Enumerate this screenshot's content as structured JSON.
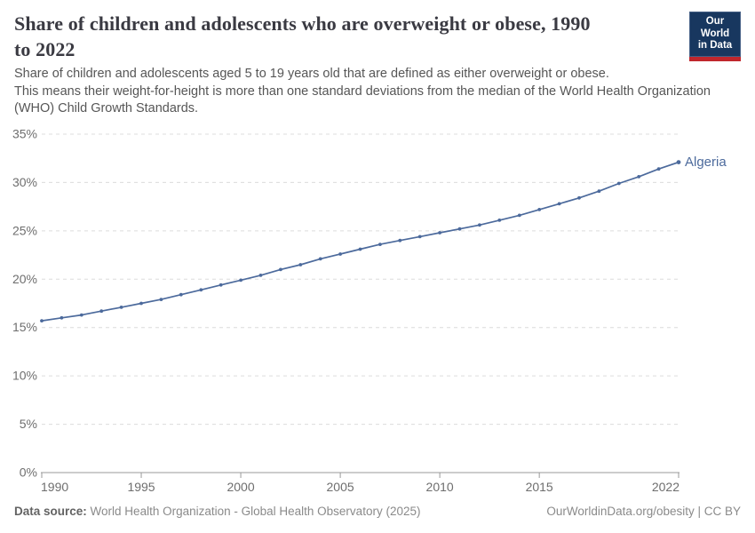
{
  "header": {
    "title_lines": [
      "Share of children and adolescents who are overweight or obese, 1990",
      "to 2022"
    ],
    "logo": {
      "line1": "Our World",
      "line2": "in Data"
    }
  },
  "subtitle": {
    "lines": [
      "Share of children and adolescents aged 5 to 19 years old that are defined as either overweight or obese.",
      "This means their weight-for-height is more than one standard deviations from the median of the World Health Organization",
      "(WHO) Child Growth Standards."
    ]
  },
  "chart_data": {
    "type": "line",
    "title": "Share of children and adolescents who are overweight or obese, 1990 to 2022",
    "xlabel": "",
    "ylabel": "",
    "xlim": [
      1990,
      2022
    ],
    "ylim": [
      0,
      35
    ],
    "x_ticks": [
      1990,
      1995,
      2000,
      2005,
      2010,
      2015,
      2022
    ],
    "y_ticks": [
      0,
      5,
      10,
      15,
      20,
      25,
      30,
      35
    ],
    "y_tick_suffix": "%",
    "grid": "horizontal-dashed",
    "legend": "end-of-line-label",
    "series": [
      {
        "name": "Algeria",
        "color": "#4C6A9C",
        "x": [
          1990,
          1991,
          1992,
          1993,
          1994,
          1995,
          1996,
          1997,
          1998,
          1999,
          2000,
          2001,
          2002,
          2003,
          2004,
          2005,
          2006,
          2007,
          2008,
          2009,
          2010,
          2011,
          2012,
          2013,
          2014,
          2015,
          2016,
          2017,
          2018,
          2019,
          2020,
          2021,
          2022
        ],
        "values": [
          15.7,
          16.0,
          16.3,
          16.7,
          17.1,
          17.5,
          17.9,
          18.4,
          18.9,
          19.4,
          19.9,
          20.4,
          21.0,
          21.5,
          22.1,
          22.6,
          23.1,
          23.6,
          24.0,
          24.4,
          24.8,
          25.2,
          25.6,
          26.1,
          26.6,
          27.2,
          27.8,
          28.4,
          29.1,
          29.9,
          30.6,
          31.4,
          32.1
        ]
      }
    ]
  },
  "footer": {
    "datasource_label": "Data source:",
    "datasource_value": "World Health Organization - Global Health Observatory (2025)",
    "credit": "OurWorldinData.org/obesity | CC BY"
  },
  "colors": {
    "line": "#4C6A9C",
    "logo_bg": "#18375F",
    "logo_accent": "#C0262C",
    "gridline": "#dcdcdc",
    "axis": "#999999",
    "axis_text": "#6e6e6e"
  }
}
